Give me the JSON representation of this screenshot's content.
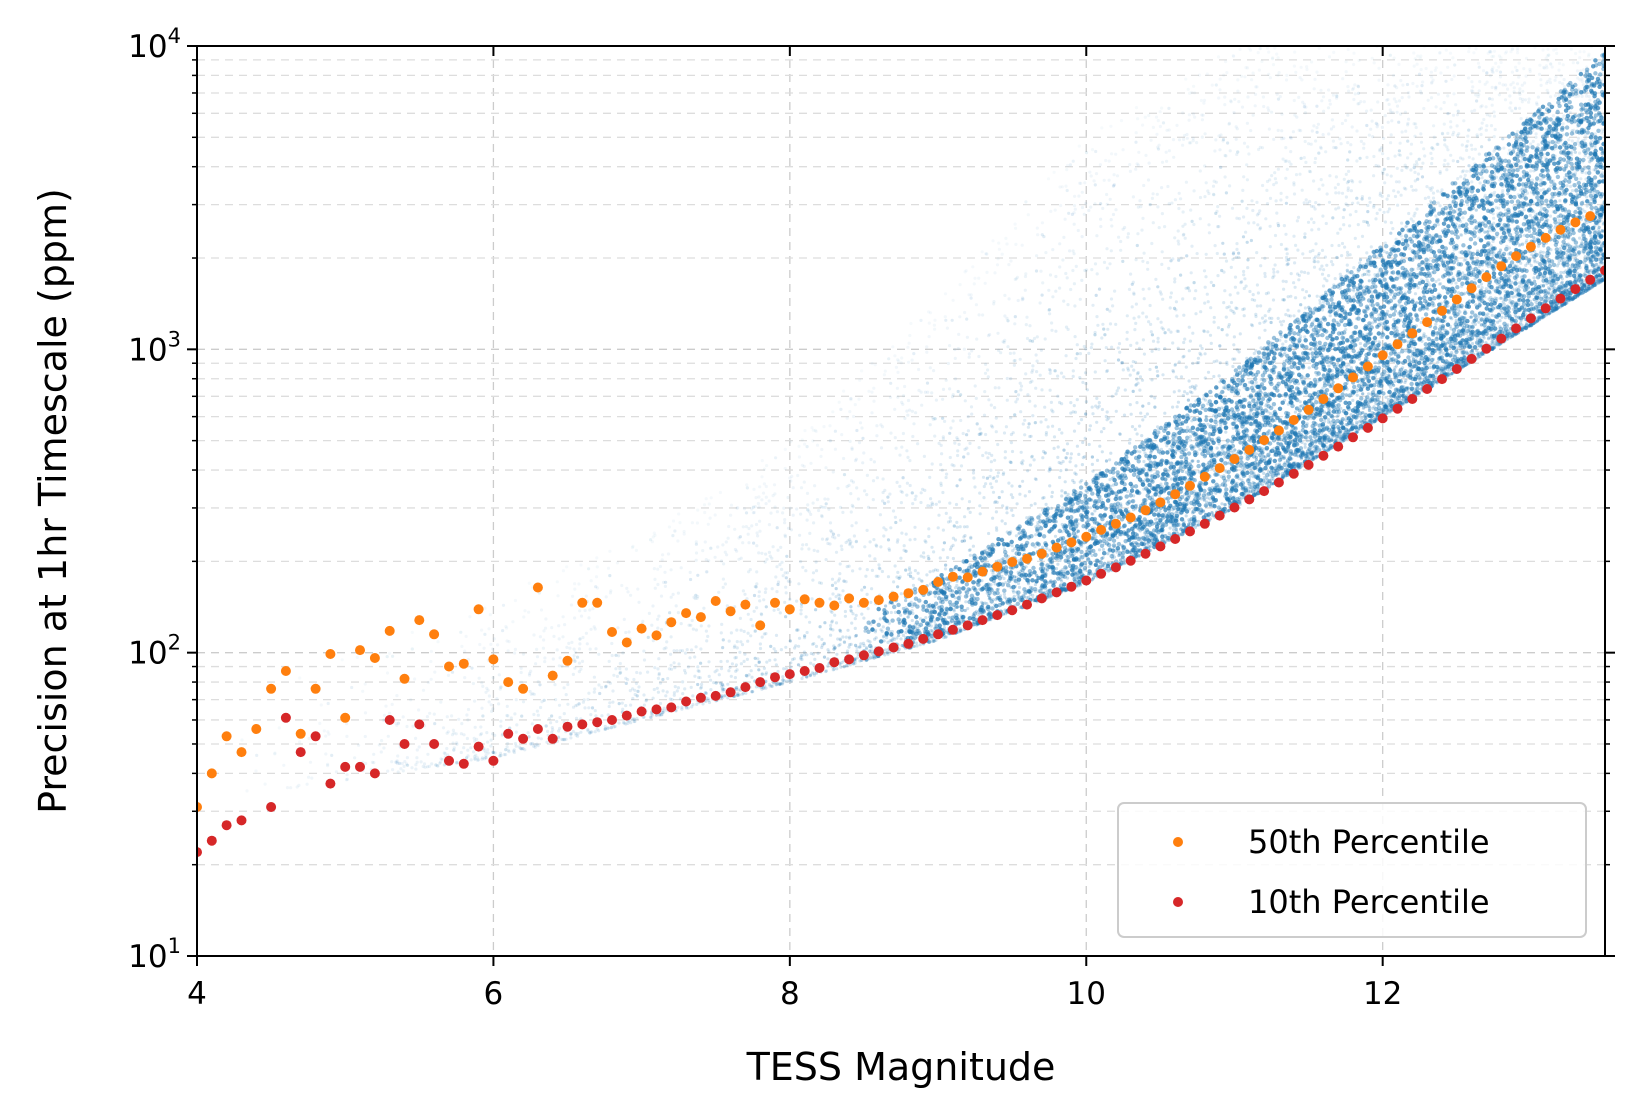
{
  "chart_data": {
    "type": "scatter",
    "title": "",
    "xlabel": "TESS Magnitude",
    "ylabel": "Precision at 1hr Timescale (ppm)",
    "xlim": [
      4,
      13.5
    ],
    "ylim": [
      10,
      10000
    ],
    "yscale": "log",
    "grid": true,
    "legend_position": "lower-right",
    "x_ticks": [
      {
        "value": 4,
        "label": "4"
      },
      {
        "value": 6,
        "label": "6"
      },
      {
        "value": 8,
        "label": "8"
      },
      {
        "value": 10,
        "label": "10"
      },
      {
        "value": 12,
        "label": "12"
      }
    ],
    "y_ticks": [
      {
        "value": 10,
        "base": "10",
        "exp": "1"
      },
      {
        "value": 100,
        "base": "10",
        "exp": "2"
      },
      {
        "value": 1000,
        "base": "10",
        "exp": "3"
      },
      {
        "value": 10000,
        "base": "10",
        "exp": "4"
      }
    ],
    "background_scatter": {
      "description_color": "#1f77b4",
      "color": "#1f77b4",
      "envelope": [
        {
          "x": 4.5,
          "low": 35,
          "high": 80
        },
        {
          "x": 6,
          "low": 45,
          "high": 150
        },
        {
          "x": 7,
          "low": 60,
          "high": 250
        },
        {
          "x": 8,
          "low": 80,
          "high": 500
        },
        {
          "x": 9,
          "low": 110,
          "high": 1500
        },
        {
          "x": 10,
          "low": 170,
          "high": 5000
        },
        {
          "x": 11,
          "low": 300,
          "high": 10000
        },
        {
          "x": 12,
          "low": 600,
          "high": 10000
        },
        {
          "x": 13.5,
          "low": 1700,
          "high": 10000
        }
      ]
    },
    "series": [
      {
        "name": "50th Percentile",
        "color": "#ff7f0e",
        "points": [
          [
            4.0,
            31
          ],
          [
            4.1,
            40
          ],
          [
            4.2,
            53
          ],
          [
            4.3,
            47
          ],
          [
            4.4,
            56
          ],
          [
            4.5,
            76
          ],
          [
            4.6,
            87
          ],
          [
            4.7,
            54
          ],
          [
            4.8,
            76
          ],
          [
            4.9,
            99
          ],
          [
            5.0,
            61
          ],
          [
            5.1,
            102
          ],
          [
            5.2,
            96
          ],
          [
            5.3,
            118
          ],
          [
            5.4,
            82
          ],
          [
            5.5,
            128
          ],
          [
            5.6,
            115
          ],
          [
            5.7,
            90
          ],
          [
            5.8,
            92
          ],
          [
            5.9,
            139
          ],
          [
            6.0,
            95
          ],
          [
            6.1,
            80
          ],
          [
            6.2,
            76
          ],
          [
            6.3,
            164
          ],
          [
            6.4,
            84
          ],
          [
            6.5,
            94
          ],
          [
            6.6,
            146
          ],
          [
            6.7,
            146
          ],
          [
            6.8,
            117
          ],
          [
            6.9,
            108
          ],
          [
            7.0,
            120
          ],
          [
            7.1,
            114
          ],
          [
            7.2,
            126
          ],
          [
            7.3,
            135
          ],
          [
            7.4,
            131
          ],
          [
            7.5,
            148
          ],
          [
            7.6,
            137
          ],
          [
            7.7,
            144
          ],
          [
            7.8,
            123
          ],
          [
            7.9,
            146
          ],
          [
            8.0,
            139
          ],
          [
            8.1,
            150
          ],
          [
            8.2,
            146
          ],
          [
            8.3,
            143
          ],
          [
            8.4,
            151
          ],
          [
            8.5,
            146
          ],
          [
            8.6,
            149
          ],
          [
            8.7,
            153
          ],
          [
            8.8,
            157
          ],
          [
            8.9,
            161
          ],
          [
            9.0,
            171
          ],
          [
            9.1,
            178
          ],
          [
            9.2,
            177
          ],
          [
            9.3,
            185
          ],
          [
            9.4,
            192
          ],
          [
            9.5,
            199
          ],
          [
            9.6,
            204
          ],
          [
            9.7,
            212
          ],
          [
            9.8,
            222
          ],
          [
            9.9,
            231
          ],
          [
            10.0,
            241
          ],
          [
            10.1,
            254
          ],
          [
            10.2,
            266
          ],
          [
            10.3,
            279
          ],
          [
            10.4,
            295
          ],
          [
            10.5,
            313
          ],
          [
            10.6,
            333
          ],
          [
            10.7,
            355
          ],
          [
            10.8,
            380
          ],
          [
            10.9,
            406
          ],
          [
            11.0,
            435
          ],
          [
            11.1,
            466
          ],
          [
            11.2,
            502
          ],
          [
            11.3,
            540
          ],
          [
            11.4,
            585
          ],
          [
            11.5,
            632
          ],
          [
            11.6,
            686
          ],
          [
            11.7,
            744
          ],
          [
            11.8,
            808
          ],
          [
            11.9,
            878
          ],
          [
            12.0,
            956
          ],
          [
            12.1,
            1040
          ],
          [
            12.2,
            1130
          ],
          [
            12.3,
            1230
          ],
          [
            12.4,
            1340
          ],
          [
            12.5,
            1460
          ],
          [
            12.6,
            1590
          ],
          [
            12.7,
            1730
          ],
          [
            12.8,
            1880
          ],
          [
            12.9,
            2030
          ],
          [
            13.0,
            2180
          ],
          [
            13.1,
            2330
          ],
          [
            13.2,
            2480
          ],
          [
            13.3,
            2620
          ],
          [
            13.4,
            2750
          ]
        ]
      },
      {
        "name": "10th Percentile",
        "color": "#d62728",
        "points": [
          [
            4.0,
            22
          ],
          [
            4.1,
            24
          ],
          [
            4.2,
            27
          ],
          [
            4.3,
            28
          ],
          [
            4.5,
            31
          ],
          [
            4.6,
            61
          ],
          [
            4.7,
            47
          ],
          [
            4.8,
            53
          ],
          [
            4.9,
            37
          ],
          [
            5.0,
            42
          ],
          [
            5.1,
            42
          ],
          [
            5.2,
            40
          ],
          [
            5.3,
            60
          ],
          [
            5.4,
            50
          ],
          [
            5.5,
            58
          ],
          [
            5.6,
            50
          ],
          [
            5.7,
            44
          ],
          [
            5.8,
            43
          ],
          [
            5.9,
            49
          ],
          [
            6.0,
            44
          ],
          [
            6.1,
            54
          ],
          [
            6.2,
            52
          ],
          [
            6.3,
            56
          ],
          [
            6.4,
            52
          ],
          [
            6.5,
            57
          ],
          [
            6.6,
            58
          ],
          [
            6.7,
            59
          ],
          [
            6.8,
            60
          ],
          [
            6.9,
            62
          ],
          [
            7.0,
            64
          ],
          [
            7.1,
            65
          ],
          [
            7.2,
            66
          ],
          [
            7.3,
            69
          ],
          [
            7.4,
            71
          ],
          [
            7.5,
            72
          ],
          [
            7.6,
            74
          ],
          [
            7.7,
            77
          ],
          [
            7.8,
            80
          ],
          [
            7.9,
            83
          ],
          [
            8.0,
            85
          ],
          [
            8.1,
            87
          ],
          [
            8.2,
            89
          ],
          [
            8.3,
            93
          ],
          [
            8.4,
            95
          ],
          [
            8.5,
            98
          ],
          [
            8.6,
            101
          ],
          [
            8.7,
            104
          ],
          [
            8.8,
            107
          ],
          [
            8.9,
            111
          ],
          [
            9.0,
            115
          ],
          [
            9.1,
            119
          ],
          [
            9.2,
            123
          ],
          [
            9.3,
            128
          ],
          [
            9.4,
            133
          ],
          [
            9.5,
            138
          ],
          [
            9.6,
            144
          ],
          [
            9.7,
            151
          ],
          [
            9.8,
            158
          ],
          [
            9.9,
            165
          ],
          [
            10.0,
            173
          ],
          [
            10.1,
            182
          ],
          [
            10.2,
            191
          ],
          [
            10.3,
            201
          ],
          [
            10.4,
            212
          ],
          [
            10.5,
            224
          ],
          [
            10.6,
            237
          ],
          [
            10.7,
            251
          ],
          [
            10.8,
            266
          ],
          [
            10.9,
            283
          ],
          [
            11.0,
            301
          ],
          [
            11.1,
            320
          ],
          [
            11.2,
            341
          ],
          [
            11.3,
            364
          ],
          [
            11.4,
            389
          ],
          [
            11.5,
            416
          ],
          [
            11.6,
            446
          ],
          [
            11.7,
            478
          ],
          [
            11.8,
            513
          ],
          [
            11.9,
            551
          ],
          [
            12.0,
            592
          ],
          [
            12.1,
            637
          ],
          [
            12.2,
            686
          ],
          [
            12.3,
            740
          ],
          [
            12.4,
            798
          ],
          [
            12.5,
            861
          ],
          [
            12.6,
            930
          ],
          [
            12.7,
            1005
          ],
          [
            12.8,
            1085
          ],
          [
            12.9,
            1172
          ],
          [
            13.0,
            1265
          ],
          [
            13.1,
            1365
          ],
          [
            13.2,
            1470
          ],
          [
            13.3,
            1580
          ],
          [
            13.4,
            1695
          ],
          [
            13.5,
            1820
          ]
        ]
      }
    ]
  }
}
